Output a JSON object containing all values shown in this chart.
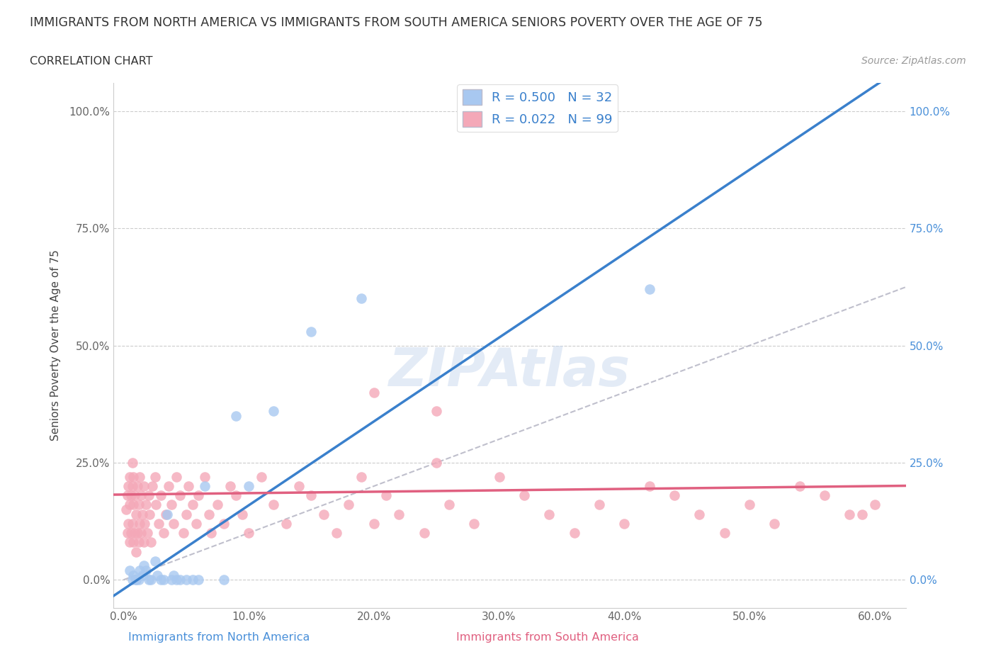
{
  "title": "IMMIGRANTS FROM NORTH AMERICA VS IMMIGRANTS FROM SOUTH AMERICA SENIORS POVERTY OVER THE AGE OF 75",
  "subtitle": "CORRELATION CHART",
  "source": "Source: ZipAtlas.com",
  "ylabel": "Seniors Poverty Over the Age of 75",
  "legend_R1": "R = 0.500",
  "legend_N1": "N = 32",
  "legend_R2": "R = 0.022",
  "legend_N2": "N = 99",
  "color_north": "#a8c8f0",
  "color_south": "#f4a8b8",
  "color_north_line": "#3a80cc",
  "color_south_line": "#e06080",
  "color_diag": "#b0b0c0",
  "xlim": [
    -0.008,
    0.625
  ],
  "ylim": [
    -0.06,
    1.06
  ],
  "x_tick_vals": [
    0.0,
    0.1,
    0.2,
    0.3,
    0.4,
    0.5,
    0.6
  ],
  "y_tick_vals": [
    0.0,
    0.25,
    0.5,
    0.75,
    1.0
  ],
  "north_x": [
    0.005,
    0.007,
    0.008,
    0.01,
    0.01,
    0.012,
    0.013,
    0.015,
    0.016,
    0.018,
    0.02,
    0.022,
    0.025,
    0.027,
    0.03,
    0.032,
    0.035,
    0.038,
    0.04,
    0.042,
    0.045,
    0.05,
    0.055,
    0.06,
    0.065,
    0.08,
    0.09,
    0.1,
    0.12,
    0.15,
    0.19,
    0.42
  ],
  "north_y": [
    0.02,
    0.0,
    0.01,
    0.0,
    0.0,
    0.0,
    0.02,
    0.01,
    0.03,
    0.02,
    0.0,
    0.0,
    0.04,
    0.01,
    0.0,
    0.0,
    0.14,
    0.0,
    0.01,
    0.0,
    0.0,
    0.0,
    0.0,
    0.0,
    0.2,
    0.0,
    0.35,
    0.2,
    0.36,
    0.53,
    0.6,
    0.62
  ],
  "south_x": [
    0.002,
    0.003,
    0.003,
    0.004,
    0.004,
    0.005,
    0.005,
    0.005,
    0.006,
    0.006,
    0.007,
    0.007,
    0.007,
    0.008,
    0.008,
    0.008,
    0.009,
    0.009,
    0.01,
    0.01,
    0.011,
    0.011,
    0.012,
    0.012,
    0.013,
    0.013,
    0.014,
    0.014,
    0.015,
    0.016,
    0.016,
    0.017,
    0.018,
    0.019,
    0.02,
    0.021,
    0.022,
    0.023,
    0.025,
    0.026,
    0.028,
    0.03,
    0.032,
    0.034,
    0.036,
    0.038,
    0.04,
    0.042,
    0.045,
    0.048,
    0.05,
    0.052,
    0.055,
    0.058,
    0.06,
    0.065,
    0.068,
    0.07,
    0.075,
    0.08,
    0.085,
    0.09,
    0.095,
    0.1,
    0.11,
    0.12,
    0.13,
    0.14,
    0.15,
    0.16,
    0.17,
    0.18,
    0.19,
    0.2,
    0.21,
    0.22,
    0.24,
    0.25,
    0.26,
    0.28,
    0.3,
    0.32,
    0.34,
    0.36,
    0.38,
    0.4,
    0.42,
    0.44,
    0.46,
    0.48,
    0.5,
    0.52,
    0.54,
    0.56,
    0.58,
    0.6,
    0.2,
    0.25,
    0.59
  ],
  "south_y": [
    0.15,
    0.1,
    0.18,
    0.12,
    0.2,
    0.08,
    0.16,
    0.22,
    0.1,
    0.18,
    0.12,
    0.2,
    0.25,
    0.08,
    0.16,
    0.22,
    0.1,
    0.18,
    0.06,
    0.14,
    0.1,
    0.2,
    0.08,
    0.16,
    0.12,
    0.22,
    0.1,
    0.18,
    0.14,
    0.08,
    0.2,
    0.12,
    0.16,
    0.1,
    0.18,
    0.14,
    0.08,
    0.2,
    0.22,
    0.16,
    0.12,
    0.18,
    0.1,
    0.14,
    0.2,
    0.16,
    0.12,
    0.22,
    0.18,
    0.1,
    0.14,
    0.2,
    0.16,
    0.12,
    0.18,
    0.22,
    0.14,
    0.1,
    0.16,
    0.12,
    0.2,
    0.18,
    0.14,
    0.1,
    0.22,
    0.16,
    0.12,
    0.2,
    0.18,
    0.14,
    0.1,
    0.16,
    0.22,
    0.12,
    0.18,
    0.14,
    0.1,
    0.36,
    0.16,
    0.12,
    0.22,
    0.18,
    0.14,
    0.1,
    0.16,
    0.12,
    0.2,
    0.18,
    0.14,
    0.1,
    0.16,
    0.12,
    0.2,
    0.18,
    0.14,
    0.16,
    0.4,
    0.25,
    0.14
  ]
}
